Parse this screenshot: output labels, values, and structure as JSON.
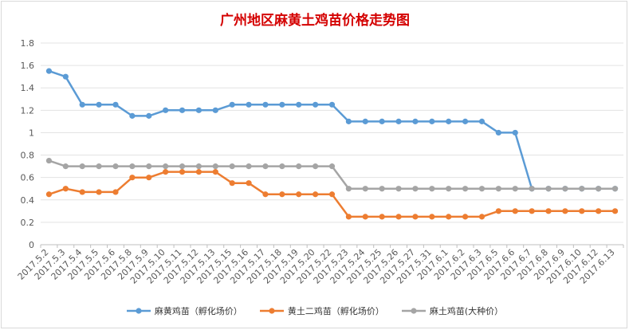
{
  "chart_data": {
    "type": "line",
    "title": "广州地区麻黄土鸡苗价格走势图",
    "xlabel": "",
    "ylabel": "",
    "ylim": [
      0,
      1.8
    ],
    "ytick_step": 0.2,
    "grid": true,
    "legend_position": "bottom",
    "categories": [
      "2017.5.2",
      "2017.5.3",
      "2017.5.4",
      "2017.5.5",
      "2017.5.6",
      "2017.5.8",
      "2017.5.9",
      "2017.5.10",
      "2017.5.11",
      "2017.5.12",
      "2017.5.13",
      "2017.5.15",
      "2017.5.16",
      "2017.5.17",
      "2017.5.18",
      "2017.5.19",
      "2017.5.20",
      "2017.5.22",
      "2017.5.23",
      "2017.5.24",
      "2017.5.25",
      "2017.5.26",
      "2017.5.27",
      "2017.5.31",
      "2017.6.1",
      "2017.6.2",
      "2017.6.3",
      "2017.6.5",
      "2017.6.6",
      "2017.6.7",
      "2017.6.8",
      "2017.6.9",
      "2017.6.10",
      "2017.6.12",
      "2017.6.13"
    ],
    "series": [
      {
        "name": "麻黄鸡苗（孵化场价）",
        "color": "#5b9bd5",
        "values": [
          1.55,
          1.5,
          1.25,
          1.25,
          1.25,
          1.15,
          1.15,
          1.2,
          1.2,
          1.2,
          1.2,
          1.25,
          1.25,
          1.25,
          1.25,
          1.25,
          1.25,
          1.25,
          1.1,
          1.1,
          1.1,
          1.1,
          1.1,
          1.1,
          1.1,
          1.1,
          1.1,
          1.0,
          1.0,
          0.5,
          0.5,
          0.5,
          0.5,
          0.5,
          0.5
        ]
      },
      {
        "name": "黄土二鸡苗（孵化场价）",
        "color": "#ed7d31",
        "values": [
          0.45,
          0.5,
          0.47,
          0.47,
          0.47,
          0.6,
          0.6,
          0.65,
          0.65,
          0.65,
          0.65,
          0.55,
          0.55,
          0.45,
          0.45,
          0.45,
          0.45,
          0.45,
          0.25,
          0.25,
          0.25,
          0.25,
          0.25,
          0.25,
          0.25,
          0.25,
          0.25,
          0.3,
          0.3,
          0.3,
          0.3,
          0.3,
          0.3,
          0.3,
          0.3
        ]
      },
      {
        "name": "麻土鸡苗(大种价）",
        "color": "#a5a5a5",
        "values": [
          0.75,
          0.7,
          0.7,
          0.7,
          0.7,
          0.7,
          0.7,
          0.7,
          0.7,
          0.7,
          0.7,
          0.7,
          0.7,
          0.7,
          0.7,
          0.7,
          0.7,
          0.7,
          0.5,
          0.5,
          0.5,
          0.5,
          0.5,
          0.5,
          0.5,
          0.5,
          0.5,
          0.5,
          0.5,
          0.5,
          0.5,
          0.5,
          0.5,
          0.5,
          0.5
        ]
      }
    ]
  }
}
